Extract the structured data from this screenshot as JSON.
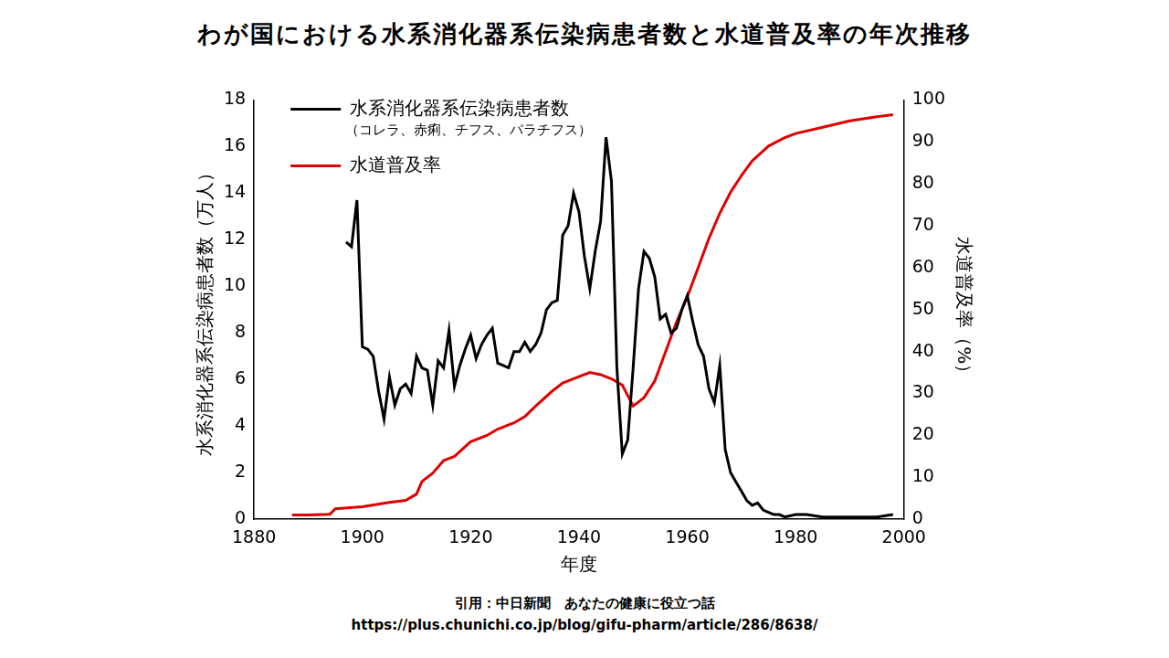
{
  "chart_data": {
    "type": "line",
    "title": "わが国における水系消化器系伝染病患者数と水道普及率の年次推移",
    "xlabel": "年度",
    "ylabel": "水系消化器系伝染病患者数（万人）",
    "y2label": "水道普及率（%）",
    "annotations": [
      "（コレラ、赤痢、チフス、パラチフス）"
    ],
    "source_lines": [
      "引用：中日新聞　あなたの健康に役立つ話",
      "https://plus.chunichi.co.jp/blog/gifu-pharm/article/286/8638/"
    ],
    "xlim": [
      1880,
      2000
    ],
    "xticks": [
      1880,
      1900,
      1920,
      1940,
      1960,
      1980,
      2000
    ],
    "ylim": [
      0,
      18
    ],
    "yticks": [
      0,
      2,
      4,
      6,
      8,
      10,
      12,
      14,
      16,
      18
    ],
    "y2lim": [
      0,
      100
    ],
    "y2ticks": [
      0,
      10,
      20,
      30,
      40,
      50,
      60,
      70,
      80,
      90,
      100
    ],
    "grid": false,
    "legend": "upper left",
    "series": [
      {
        "name": "水系消化器系伝染病患者数",
        "color": "#000000",
        "axis": "y",
        "x": [
          1897,
          1898,
          1899,
          1900,
          1901,
          1902,
          1903,
          1904,
          1905,
          1906,
          1907,
          1908,
          1909,
          1910,
          1911,
          1912,
          1913,
          1914,
          1915,
          1916,
          1917,
          1918,
          1919,
          1920,
          1921,
          1922,
          1923,
          1924,
          1925,
          1926,
          1927,
          1928,
          1929,
          1930,
          1931,
          1932,
          1933,
          1934,
          1935,
          1936,
          1937,
          1938,
          1939,
          1940,
          1941,
          1942,
          1943,
          1944,
          1945,
          1946,
          1947,
          1948,
          1949,
          1950,
          1951,
          1952,
          1953,
          1954,
          1955,
          1956,
          1957,
          1958,
          1959,
          1960,
          1961,
          1962,
          1963,
          1964,
          1965,
          1966,
          1967,
          1968,
          1969,
          1970,
          1971,
          1972,
          1973,
          1974,
          1975,
          1976,
          1977,
          1978,
          1980,
          1982,
          1985,
          1990,
          1995,
          1998
        ],
        "values": [
          11.9,
          11.7,
          13.7,
          7.4,
          7.3,
          7.0,
          5.5,
          4.3,
          6.1,
          4.9,
          5.6,
          5.8,
          5.4,
          7.0,
          6.5,
          6.4,
          4.9,
          6.8,
          6.5,
          8.1,
          5.7,
          6.6,
          7.3,
          7.9,
          6.9,
          7.5,
          7.9,
          8.2,
          6.7,
          6.6,
          6.5,
          7.2,
          7.2,
          7.6,
          7.2,
          7.5,
          8.0,
          9.0,
          9.3,
          9.4,
          12.2,
          12.6,
          14.0,
          13.2,
          11.3,
          9.9,
          11.5,
          12.8,
          16.4,
          14.5,
          6.5,
          2.8,
          3.4,
          6.5,
          9.9,
          11.5,
          11.2,
          10.4,
          8.6,
          8.8,
          8.0,
          8.2,
          9.0,
          9.6,
          8.5,
          7.5,
          7.0,
          5.6,
          5.0,
          6.6,
          3.0,
          2.0,
          1.6,
          1.2,
          0.8,
          0.6,
          0.7,
          0.4,
          0.3,
          0.2,
          0.2,
          0.1,
          0.2,
          0.2,
          0.1,
          0.1,
          0.1,
          0.2
        ]
      },
      {
        "name": "水道普及率",
        "color": "#e00000",
        "axis": "y2",
        "x": [
          1887,
          1890,
          1894,
          1895,
          1900,
          1905,
          1908,
          1910,
          1911,
          1913,
          1915,
          1917,
          1920,
          1923,
          1925,
          1928,
          1930,
          1932,
          1935,
          1937,
          1940,
          1942,
          1944,
          1946,
          1948,
          1950,
          1952,
          1954,
          1956,
          1958,
          1960,
          1962,
          1964,
          1966,
          1968,
          1970,
          1972,
          1975,
          1978,
          1980,
          1985,
          1990,
          1995,
          1998
        ],
        "values": [
          1.0,
          1.0,
          1.2,
          2.5,
          3.0,
          4.0,
          4.5,
          6.0,
          9.0,
          11.0,
          14.0,
          15.0,
          18.5,
          20.0,
          21.5,
          23.0,
          24.5,
          27.0,
          30.5,
          32.5,
          34.0,
          35.0,
          34.5,
          33.5,
          32.0,
          27.0,
          29.0,
          33.0,
          40.0,
          47.0,
          53.0,
          60.0,
          67.0,
          73.0,
          78.0,
          82.0,
          85.5,
          89.0,
          91.0,
          92.0,
          93.5,
          95.0,
          96.0,
          96.5
        ]
      }
    ]
  }
}
